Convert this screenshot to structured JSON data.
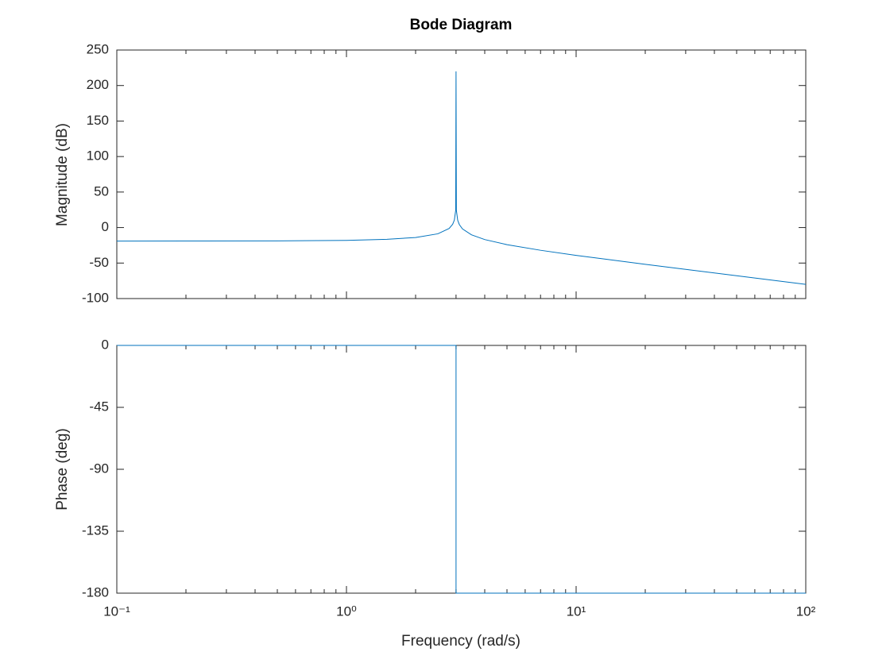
{
  "chart_data": [
    {
      "type": "line",
      "title": "Bode Diagram",
      "ylabel": "Magnitude (dB)",
      "xscale": "log",
      "color": "#0072bd",
      "grid": false,
      "x": [
        0.1,
        0.2,
        0.5,
        1,
        1.5,
        2,
        2.5,
        2.8,
        2.9,
        2.95,
        2.99,
        3,
        3.01,
        3.05,
        3.1,
        3.2,
        3.5,
        4,
        5,
        7,
        10,
        20,
        50,
        100
      ],
      "values": [
        -19.1,
        -19.0,
        -18.8,
        -18.1,
        -16.6,
        -14.0,
        -8.8,
        -1.3,
        4.6,
        10.5,
        24.5,
        220,
        24.4,
        10.4,
        4.3,
        -1.9,
        -10.2,
        -16.9,
        -24.1,
        -32.0,
        -39.2,
        -51.8,
        -67.9,
        -80.0
      ],
      "xlim": [
        0.1,
        100
      ],
      "ylim": [
        -100,
        250
      ],
      "yticks": [
        -100,
        -50,
        0,
        50,
        100,
        150,
        200,
        250
      ]
    },
    {
      "type": "line",
      "ylabel": "Phase (deg)",
      "xlabel": "Frequency (rad/s)",
      "xscale": "log",
      "color": "#0072bd",
      "grid": false,
      "x": [
        0.1,
        3,
        3,
        100
      ],
      "values": [
        0,
        0,
        -180,
        -180
      ],
      "xlim": [
        0.1,
        100
      ],
      "ylim": [
        -180,
        0
      ],
      "yticks": [
        -180,
        -135,
        -90,
        -45,
        0
      ],
      "xticks": [
        {
          "value": 0.1,
          "label": "10⁻¹"
        },
        {
          "value": 1,
          "label": "10⁰"
        },
        {
          "value": 10,
          "label": "10¹"
        },
        {
          "value": 100,
          "label": "10²"
        }
      ]
    }
  ]
}
